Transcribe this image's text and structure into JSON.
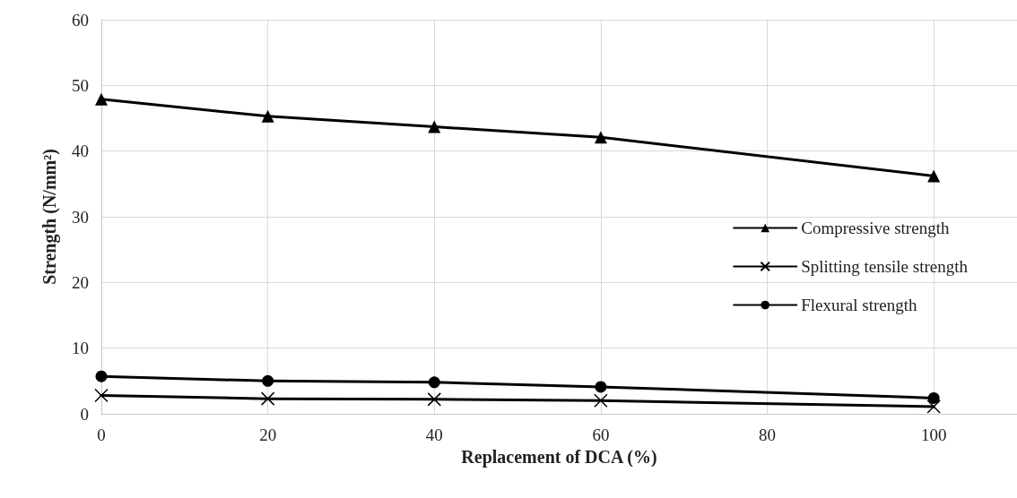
{
  "chart_data": {
    "type": "line",
    "xlabel": "Replacement of DCA (%)",
    "ylabel": "Strength (N/mm²)",
    "x": [
      0,
      20,
      40,
      60,
      100
    ],
    "xlim": [
      0,
      110
    ],
    "xticks": [
      0,
      20,
      40,
      60,
      80,
      100
    ],
    "ylim": [
      0,
      60
    ],
    "yticks": [
      0,
      10,
      20,
      30,
      40,
      50,
      60
    ],
    "grid": true,
    "legend": "right",
    "line_style": "solid",
    "series": [
      {
        "name": "Compressive strength",
        "color": "#000000",
        "marker": "triangle",
        "values": [
          47.9,
          45.3,
          43.7,
          42.1,
          36.2
        ]
      },
      {
        "name": "Splitting tensile strength",
        "color": "#000000",
        "marker": "cross",
        "values": [
          2.8,
          2.3,
          2.2,
          2.0,
          1.1
        ]
      },
      {
        "name": "Flexural strength",
        "color": "#000000",
        "marker": "circle",
        "values": [
          5.7,
          5.0,
          4.8,
          4.1,
          2.4
        ]
      }
    ]
  }
}
